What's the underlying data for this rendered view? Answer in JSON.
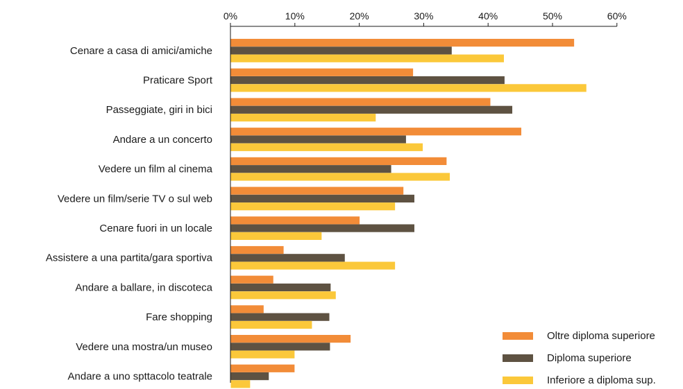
{
  "chart_data": {
    "type": "bar",
    "orientation": "horizontal",
    "title": "",
    "xlabel": "",
    "ylabel": "",
    "xlim": [
      0,
      60
    ],
    "x_axis_position": "top",
    "grid": false,
    "legend_position": "bottom-right",
    "ticks": [
      "0%",
      "10%",
      "20%",
      "30%",
      "40%",
      "50%",
      "60%"
    ],
    "tick_values": [
      0,
      10,
      20,
      30,
      40,
      50,
      60
    ],
    "categories": [
      "Cenare a casa di amici/amiche",
      "Praticare Sport",
      "Passeggiate, giri in bici",
      "Andare a un concerto",
      "Vedere un film al cinema",
      "Vedere un film/serie TV o sul web",
      "Cenare fuori in un locale",
      "Assistere a una partita/gara sportiva",
      "Andare a ballare, in discoteca",
      "Fare shopping",
      "Vedere una mostra/un museo",
      "Andare a uno spttacolo teatrale"
    ],
    "series": [
      {
        "name": "Oltre diploma superiore",
        "color": "#f28c38",
        "values": [
          53.3,
          28.3,
          40.3,
          45.1,
          33.5,
          26.8,
          20.0,
          8.2,
          6.6,
          5.1,
          18.6,
          9.9
        ]
      },
      {
        "name": "Diploma superiore",
        "color": "#5e5242",
        "values": [
          34.3,
          42.5,
          43.7,
          27.2,
          24.9,
          28.5,
          28.5,
          17.7,
          15.5,
          15.3,
          15.4,
          5.9
        ]
      },
      {
        "name": "Inferiore a diploma sup.",
        "color": "#fbc83a",
        "values": [
          42.4,
          55.2,
          22.5,
          29.8,
          34.0,
          25.5,
          14.1,
          25.5,
          16.3,
          12.6,
          9.9,
          3.0
        ]
      }
    ]
  }
}
